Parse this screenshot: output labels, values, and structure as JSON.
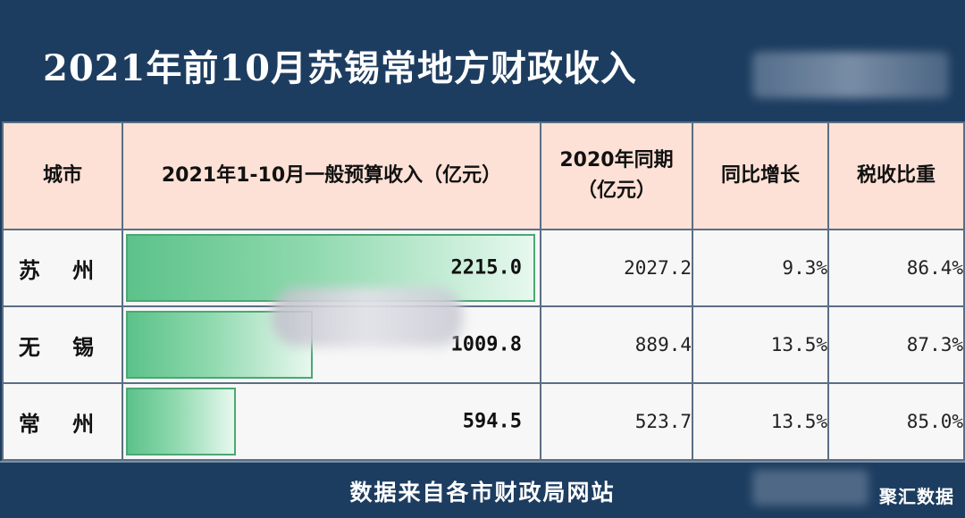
{
  "title": "2021年前10月苏锡常地方财政收入",
  "source": "数据来自各市财政局网站",
  "watermark": "聚汇数据",
  "colors": {
    "header_bg": "#1d3d60",
    "table_header_bg": "#fde1d6",
    "bar_fill": "#5cc28a"
  },
  "chart_data": {
    "type": "table",
    "columns": [
      "城市",
      "2021年1-10月一般预算收入（亿元）",
      "2020年同期（亿元）",
      "同比增长",
      "税收比重"
    ],
    "rows": [
      {
        "city": "苏 州",
        "revenue_2021": "2215.0",
        "revenue_2020": "2027.2",
        "growth": "9.3%",
        "tax_share": "86.4%"
      },
      {
        "city": "无 锡",
        "revenue_2021": "1009.8",
        "revenue_2020": "889.4",
        "growth": "13.5%",
        "tax_share": "87.3%"
      },
      {
        "city": "常 州",
        "revenue_2021": "594.5",
        "revenue_2020": "523.7",
        "growth": "13.5%",
        "tax_share": "85.0%"
      }
    ],
    "bar_values": [
      2215.0,
      1009.8,
      594.5
    ],
    "bar_max": 2215.0
  }
}
